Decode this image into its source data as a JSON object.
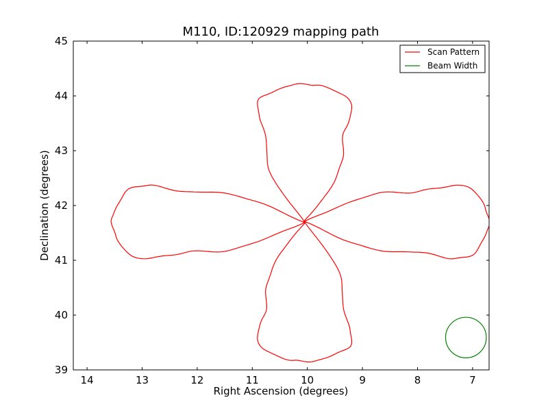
{
  "chart_data": {
    "type": "line",
    "title": "M110, ID:120929 mapping path",
    "xlabel": "Right Ascension (degrees)",
    "ylabel": "Declination (degrees)",
    "xlim": [
      14.25,
      6.7
    ],
    "ylim": [
      39,
      45
    ],
    "x_ticks": [
      "14",
      "13",
      "12",
      "11",
      "10",
      "9",
      "8",
      "7"
    ],
    "y_ticks": [
      "39",
      "40",
      "41",
      "42",
      "43",
      "44",
      "45"
    ],
    "grid": false,
    "legend_position": "top-right",
    "legend": [
      {
        "label": "Scan Pattern",
        "color": "#ff0000"
      },
      {
        "label": "Beam Width",
        "color": "#008000"
      }
    ],
    "series": [
      {
        "name": "Scan Pattern",
        "color": "#ff0000",
        "kind": "four-leaf scan path",
        "center": [
          10.05,
          41.7
        ],
        "east_lobe_tip": [
          6.7,
          41.7
        ],
        "west_lobe_tip": [
          13.55,
          41.7
        ],
        "north_lobe_tip": [
          10.05,
          44.22
        ],
        "south_lobe_tip": [
          10.05,
          39.15
        ],
        "horizontal_lobe_dec_range": [
          40.98,
          42.4
        ],
        "vertical_lobe_ra_range": [
          9.17,
          10.98
        ]
      },
      {
        "name": "Beam Width",
        "color": "#008000",
        "kind": "circle",
        "center": [
          7.12,
          39.59
        ],
        "radius_deg": 0.37
      }
    ]
  }
}
